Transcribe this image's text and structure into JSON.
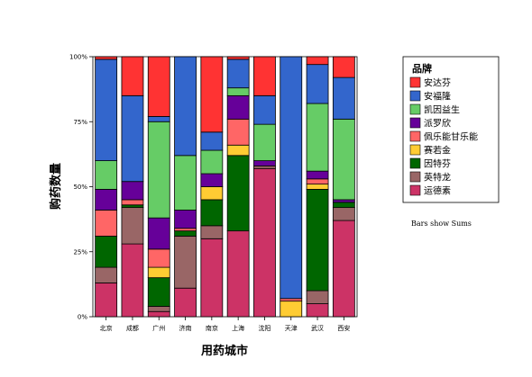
{
  "chart_data": {
    "type": "bar",
    "stacked": true,
    "normalized_percent": true,
    "xlabel": "用药城市",
    "ylabel": "购药数量",
    "ylim": [
      0,
      100
    ],
    "ytick_labels": [
      "0%",
      "25%",
      "50%",
      "75%",
      "100%"
    ],
    "ytick_values": [
      0,
      25,
      50,
      75,
      100
    ],
    "categories": [
      "北京",
      "成都",
      "广州",
      "济南",
      "南京",
      "上海",
      "沈阳",
      "天津",
      "武汉",
      "西安"
    ],
    "legend_title": "品牌",
    "legend_placement": "right",
    "note": "Bars show Sums",
    "series": [
      {
        "name": "运德素",
        "color": "#cc3366",
        "values": [
          13,
          28,
          2,
          11,
          30,
          33,
          57,
          0,
          5,
          37
        ]
      },
      {
        "name": "英特龙",
        "color": "#996666",
        "values": [
          6,
          14,
          2,
          20,
          5,
          0,
          1,
          0,
          5,
          5
        ]
      },
      {
        "name": "因特芬",
        "color": "#006600",
        "values": [
          12,
          1,
          11,
          2,
          10,
          29,
          0,
          0,
          39,
          2
        ]
      },
      {
        "name": "赛若金",
        "color": "#ffcc33",
        "values": [
          0,
          0,
          4,
          0,
          5,
          4,
          0,
          6,
          2,
          0
        ]
      },
      {
        "name": "佩乐能甘乐能",
        "color": "#ff6666",
        "values": [
          10,
          2,
          7,
          1,
          0,
          10,
          0,
          1,
          2,
          0
        ]
      },
      {
        "name": "派罗欣",
        "color": "#660099",
        "values": [
          8,
          7,
          12,
          7,
          5,
          9,
          2,
          0,
          3,
          1
        ]
      },
      {
        "name": "凯因益生",
        "color": "#66cc66",
        "values": [
          11,
          0,
          37,
          21,
          9,
          3,
          14,
          0,
          26,
          31
        ]
      },
      {
        "name": "安福隆",
        "color": "#3366cc",
        "values": [
          39,
          33,
          2,
          38,
          7,
          11,
          11,
          93,
          15,
          16
        ]
      },
      {
        "name": "安达芬",
        "color": "#ff3333",
        "values": [
          1,
          15,
          23,
          0,
          29,
          1,
          15,
          0,
          3,
          8
        ]
      }
    ],
    "legend_order": [
      "安达芬",
      "安福隆",
      "凯因益生",
      "派罗欣",
      "佩乐能甘乐能",
      "赛若金",
      "因特芬",
      "英特龙",
      "运德素"
    ]
  }
}
